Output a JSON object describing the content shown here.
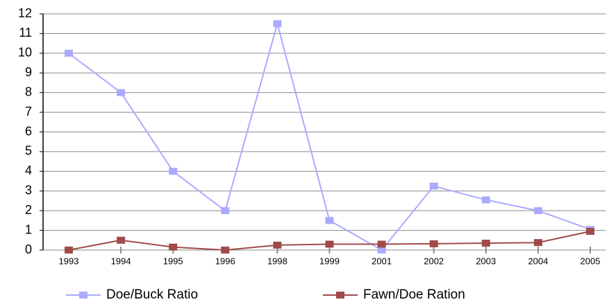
{
  "chart_data": {
    "type": "line",
    "categories": [
      "1993",
      "1994",
      "1995",
      "1996",
      "1998",
      "1999",
      "2001",
      "2002",
      "2003",
      "2004",
      "2005"
    ],
    "series": [
      {
        "name": "Doe/Buck Ratio",
        "color": "#aaaaff",
        "values": [
          10,
          8,
          4,
          2,
          11.5,
          1.5,
          0,
          3.25,
          2.55,
          2,
          1.05
        ]
      },
      {
        "name": "Fawn/Doe Ration",
        "color": "#a04a4a",
        "values": [
          0,
          0.5,
          0.15,
          0,
          0.25,
          0.3,
          0.3,
          0.32,
          0.35,
          0.38,
          0.95
        ]
      }
    ],
    "ylim": [
      0,
      12
    ],
    "yticks": [
      0,
      1,
      2,
      3,
      4,
      5,
      6,
      7,
      8,
      9,
      10,
      11,
      12
    ],
    "grid": true,
    "legend": "bottom"
  }
}
